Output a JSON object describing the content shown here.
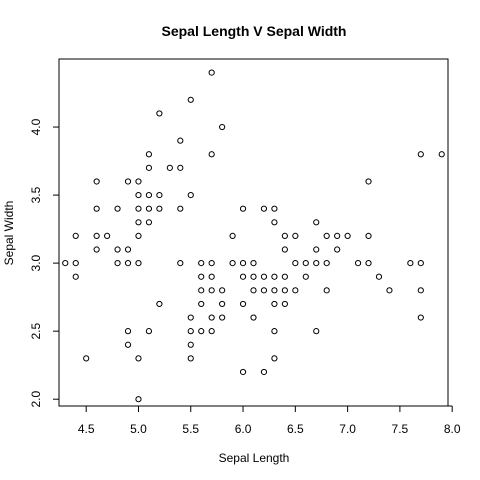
{
  "chart_data": {
    "type": "scatter",
    "title": "Sepal Length V Sepal Width",
    "xlabel": "Sepal Length",
    "ylabel": "Sepal Width",
    "xlim": [
      4.24,
      7.96
    ],
    "ylim": [
      1.95,
      4.5
    ],
    "xticks": [
      4.5,
      5.0,
      5.5,
      6.0,
      6.5,
      7.0,
      7.5,
      8.0
    ],
    "xtick_labels": [
      "4.5",
      "5.0",
      "5.5",
      "6.0",
      "6.5",
      "7.0",
      "7.5",
      "8.0"
    ],
    "yticks": [
      2.0,
      2.5,
      3.0,
      3.5,
      4.0
    ],
    "ytick_labels": [
      "2.0",
      "2.5",
      "3.0",
      "3.5",
      "4.0"
    ],
    "grid": false,
    "points": [
      [
        4.3,
        3.0
      ],
      [
        4.4,
        3.2
      ],
      [
        4.4,
        3.0
      ],
      [
        4.4,
        2.9
      ],
      [
        4.5,
        2.3
      ],
      [
        4.6,
        3.6
      ],
      [
        4.6,
        3.4
      ],
      [
        4.6,
        3.2
      ],
      [
        4.6,
        3.1
      ],
      [
        4.7,
        3.2
      ],
      [
        4.8,
        3.4
      ],
      [
        4.8,
        3.1
      ],
      [
        4.8,
        3.0
      ],
      [
        4.9,
        3.6
      ],
      [
        4.9,
        3.1
      ],
      [
        4.9,
        3.0
      ],
      [
        4.9,
        2.5
      ],
      [
        4.9,
        2.4
      ],
      [
        5.0,
        3.6
      ],
      [
        5.0,
        3.5
      ],
      [
        5.0,
        3.4
      ],
      [
        5.0,
        3.3
      ],
      [
        5.0,
        3.2
      ],
      [
        5.0,
        3.0
      ],
      [
        5.0,
        2.3
      ],
      [
        5.0,
        2.0
      ],
      [
        5.1,
        3.8
      ],
      [
        5.1,
        3.7
      ],
      [
        5.1,
        3.5
      ],
      [
        5.1,
        3.4
      ],
      [
        5.1,
        3.3
      ],
      [
        5.1,
        2.5
      ],
      [
        5.2,
        4.1
      ],
      [
        5.2,
        3.5
      ],
      [
        5.2,
        3.4
      ],
      [
        5.2,
        2.7
      ],
      [
        5.3,
        3.7
      ],
      [
        5.4,
        3.9
      ],
      [
        5.4,
        3.7
      ],
      [
        5.4,
        3.4
      ],
      [
        5.4,
        3.0
      ],
      [
        5.5,
        4.2
      ],
      [
        5.5,
        3.5
      ],
      [
        5.5,
        2.6
      ],
      [
        5.5,
        2.5
      ],
      [
        5.5,
        2.4
      ],
      [
        5.5,
        2.3
      ],
      [
        5.6,
        3.0
      ],
      [
        5.6,
        2.9
      ],
      [
        5.6,
        2.8
      ],
      [
        5.6,
        2.7
      ],
      [
        5.6,
        2.5
      ],
      [
        5.7,
        4.4
      ],
      [
        5.7,
        3.8
      ],
      [
        5.7,
        3.0
      ],
      [
        5.7,
        2.9
      ],
      [
        5.7,
        2.8
      ],
      [
        5.7,
        2.6
      ],
      [
        5.7,
        2.5
      ],
      [
        5.8,
        4.0
      ],
      [
        5.8,
        2.8
      ],
      [
        5.8,
        2.7
      ],
      [
        5.8,
        2.6
      ],
      [
        5.9,
        3.2
      ],
      [
        5.9,
        3.0
      ],
      [
        6.0,
        3.4
      ],
      [
        6.0,
        3.0
      ],
      [
        6.0,
        2.9
      ],
      [
        6.0,
        2.7
      ],
      [
        6.0,
        2.2
      ],
      [
        6.1,
        3.0
      ],
      [
        6.1,
        2.9
      ],
      [
        6.1,
        2.8
      ],
      [
        6.1,
        2.6
      ],
      [
        6.2,
        3.4
      ],
      [
        6.2,
        2.9
      ],
      [
        6.2,
        2.8
      ],
      [
        6.2,
        2.2
      ],
      [
        6.3,
        3.4
      ],
      [
        6.3,
        3.3
      ],
      [
        6.3,
        2.9
      ],
      [
        6.3,
        2.8
      ],
      [
        6.3,
        2.7
      ],
      [
        6.3,
        2.5
      ],
      [
        6.3,
        2.3
      ],
      [
        6.4,
        3.2
      ],
      [
        6.4,
        3.1
      ],
      [
        6.4,
        2.9
      ],
      [
        6.4,
        2.8
      ],
      [
        6.4,
        2.7
      ],
      [
        6.5,
        3.2
      ],
      [
        6.5,
        3.0
      ],
      [
        6.5,
        2.8
      ],
      [
        6.6,
        3.0
      ],
      [
        6.6,
        2.9
      ],
      [
        6.7,
        3.3
      ],
      [
        6.7,
        3.1
      ],
      [
        6.7,
        3.0
      ],
      [
        6.7,
        2.5
      ],
      [
        6.8,
        3.2
      ],
      [
        6.8,
        3.0
      ],
      [
        6.8,
        2.8
      ],
      [
        6.9,
        3.2
      ],
      [
        6.9,
        3.1
      ],
      [
        7.0,
        3.2
      ],
      [
        7.1,
        3.0
      ],
      [
        7.2,
        3.6
      ],
      [
        7.2,
        3.2
      ],
      [
        7.2,
        3.0
      ],
      [
        7.3,
        2.9
      ],
      [
        7.4,
        2.8
      ],
      [
        7.6,
        3.0
      ],
      [
        7.7,
        3.8
      ],
      [
        7.7,
        3.0
      ],
      [
        7.7,
        2.8
      ],
      [
        7.7,
        2.6
      ],
      [
        7.9,
        3.8
      ]
    ]
  }
}
